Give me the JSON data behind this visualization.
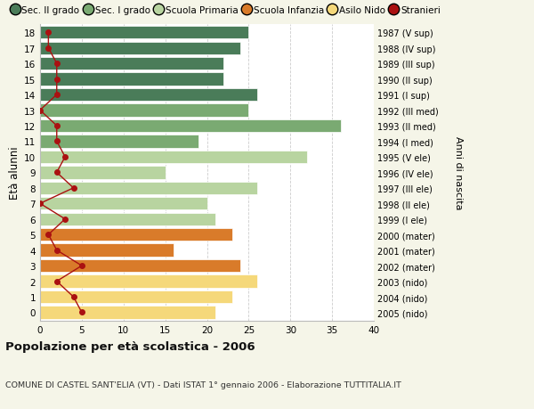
{
  "ages": [
    18,
    17,
    16,
    15,
    14,
    13,
    12,
    11,
    10,
    9,
    8,
    7,
    6,
    5,
    4,
    3,
    2,
    1,
    0
  ],
  "bar_values": [
    25,
    24,
    22,
    22,
    26,
    25,
    36,
    19,
    32,
    15,
    26,
    20,
    21,
    23,
    16,
    24,
    26,
    23,
    21
  ],
  "bar_colors": [
    "#4a7c59",
    "#4a7c59",
    "#4a7c59",
    "#4a7c59",
    "#4a7c59",
    "#7aaa72",
    "#7aaa72",
    "#7aaa72",
    "#b8d4a0",
    "#b8d4a0",
    "#b8d4a0",
    "#b8d4a0",
    "#b8d4a0",
    "#d97b2a",
    "#d97b2a",
    "#d97b2a",
    "#f5d87a",
    "#f5d87a",
    "#f5d87a"
  ],
  "stranieri_values": [
    1,
    1,
    2,
    2,
    2,
    0,
    2,
    2,
    3,
    2,
    4,
    0,
    3,
    1,
    2,
    5,
    2,
    4,
    5
  ],
  "right_labels": [
    "1987 (V sup)",
    "1988 (IV sup)",
    "1989 (III sup)",
    "1990 (II sup)",
    "1991 (I sup)",
    "1992 (III med)",
    "1993 (II med)",
    "1994 (I med)",
    "1995 (V ele)",
    "1996 (IV ele)",
    "1997 (III ele)",
    "1998 (II ele)",
    "1999 (I ele)",
    "2000 (mater)",
    "2001 (mater)",
    "2002 (mater)",
    "2003 (nido)",
    "2004 (nido)",
    "2005 (nido)"
  ],
  "legend_labels": [
    "Sec. II grado",
    "Sec. I grado",
    "Scuola Primaria",
    "Scuola Infanzia",
    "Asilo Nido",
    "Stranieri"
  ],
  "legend_colors": [
    "#4a7c59",
    "#7aaa72",
    "#b8d4a0",
    "#d97b2a",
    "#f5d87a",
    "#cc2222"
  ],
  "ylabel_left": "Età alunni",
  "ylabel_right": "Anni di nascita",
  "title": "Popolazione per età scolastica - 2006",
  "subtitle": "COMUNE DI CASTEL SANT'ELIA (VT) - Dati ISTAT 1° gennaio 2006 - Elaborazione TUTTITALIA.IT",
  "xlim": [
    0,
    40
  ],
  "xticks": [
    0,
    5,
    10,
    15,
    20,
    25,
    30,
    35,
    40
  ],
  "background_color": "#f5f5e8",
  "plot_bg_color": "#ffffff",
  "grid_color": "#cccccc",
  "stranieri_color": "#aa1111",
  "bar_height": 0.82
}
